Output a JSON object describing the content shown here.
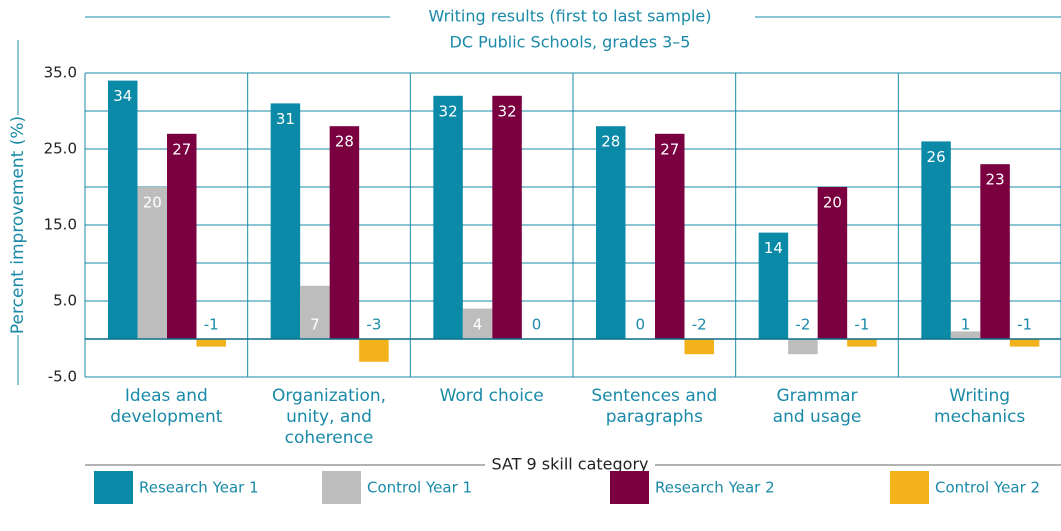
{
  "chart_data": {
    "type": "bar",
    "title": "Writing results (first to last sample)",
    "subtitle": "DC Public Schools, grades 3–5",
    "y_label": "Percent improvement (%)",
    "x_label": "SAT 9 skill category",
    "categories": [
      [
        "Ideas and",
        "development"
      ],
      [
        "Organization,",
        "unity, and",
        "coherence"
      ],
      [
        "Word choice"
      ],
      [
        "Sentences and",
        "paragraphs"
      ],
      [
        "Grammar",
        "and usage"
      ],
      [
        "Writing",
        "mechanics"
      ]
    ],
    "series": [
      {
        "name": "Research Year 1",
        "color": "#0b8aa8",
        "values": [
          34,
          31,
          32,
          28,
          14,
          26
        ]
      },
      {
        "name": "Control Year 1",
        "color": "#bdbdbd",
        "values": [
          20,
          7,
          4,
          0,
          -2,
          1
        ]
      },
      {
        "name": "Research Year 2",
        "color": "#7a0040",
        "values": [
          27,
          28,
          32,
          27,
          20,
          23
        ]
      },
      {
        "name": "Control Year 2",
        "color": "#f3b21b",
        "values": [
          -1,
          -3,
          0,
          -2,
          -1,
          -1
        ]
      }
    ],
    "ylim": [
      -5,
      35
    ],
    "yticks": [
      {
        "value": -5,
        "label": "-5.0"
      },
      {
        "value": 5,
        "label": "5.0"
      },
      {
        "value": 15,
        "label": "15.0"
      },
      {
        "value": 25,
        "label": "25.0"
      },
      {
        "value": 35,
        "label": "35.0"
      }
    ],
    "minor_gridlines": [
      0,
      10,
      20,
      30
    ],
    "grid": true,
    "legend": "bottom"
  }
}
